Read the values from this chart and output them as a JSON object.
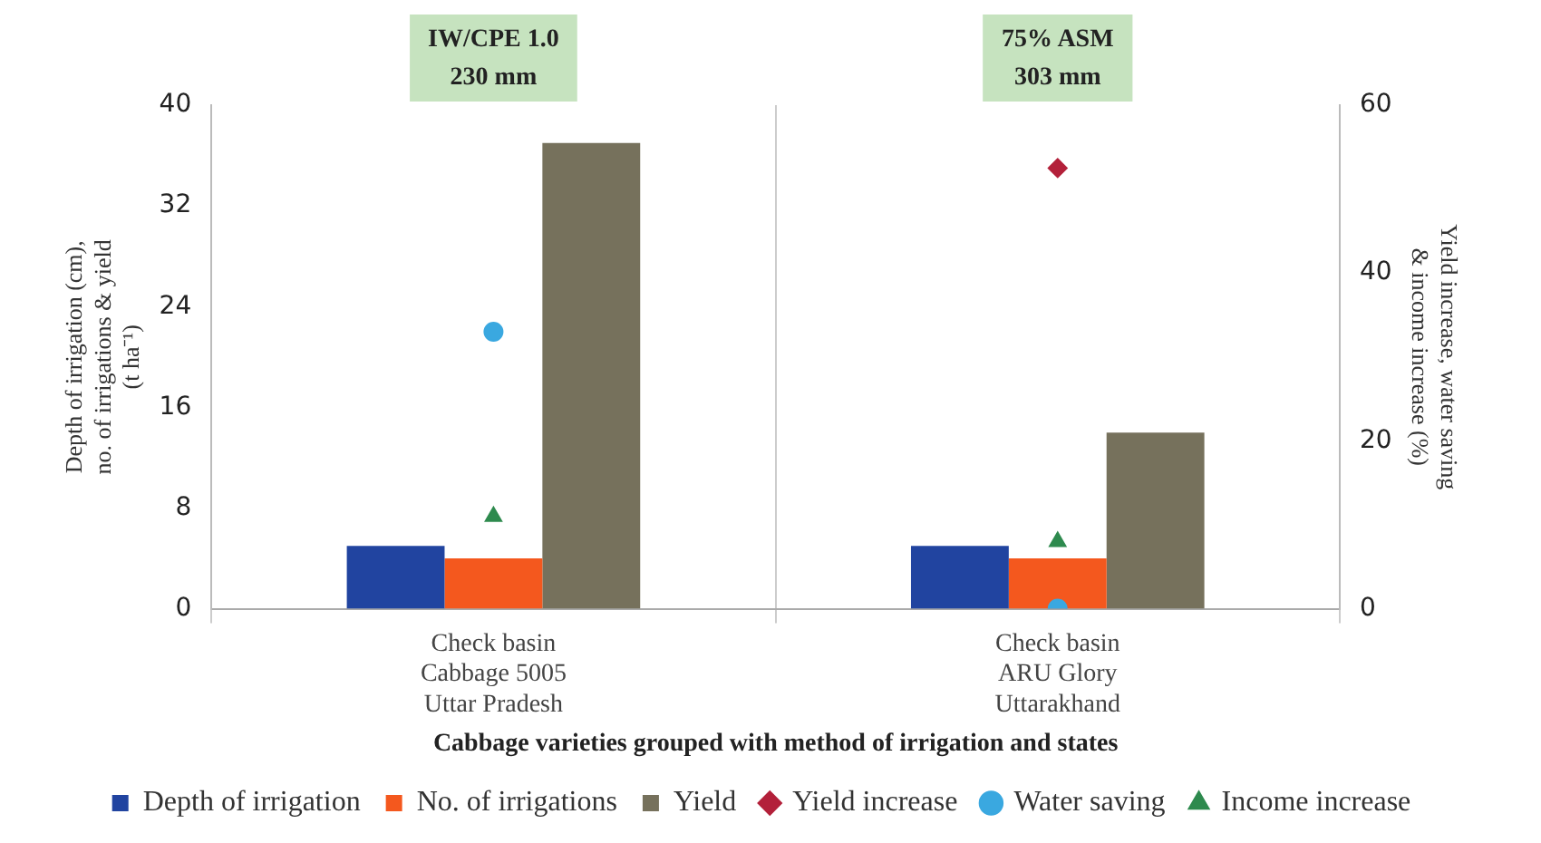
{
  "chart_data": {
    "type": "bar",
    "xlabel": "Cabbage varieties grouped with method of irrigation and states",
    "ylabel": "Depth of irrigation (cm), no. of irrigations & yield (t ha⁻¹)",
    "y2label": "Yield increase, water saving & income increase (%)",
    "categories": [
      "Check basin\nCabbage 5005\nUttar Pradesh",
      "Check basin\nARU Glory\nUttarakhand"
    ],
    "series": [
      {
        "name": "Depth of irrigation",
        "color": "#2144a0",
        "values": [
          5,
          5
        ]
      },
      {
        "name": "No. of irrigations",
        "color": "#f4581e",
        "values": [
          4,
          4
        ]
      },
      {
        "name": "Yield",
        "color": "#76715c",
        "values": [
          37,
          14
        ]
      },
      {
        "name": "Yield increase",
        "type": "scatter",
        "marker": "diamond",
        "axis": "y2",
        "color": "#b3203a",
        "values": [
          null,
          52.5
        ]
      },
      {
        "name": "Water saving",
        "type": "scatter",
        "marker": "circle",
        "axis": "y2",
        "color": "#3aa8e0",
        "values": [
          33,
          0
        ]
      },
      {
        "name": "Income increase",
        "type": "scatter",
        "marker": "triangle",
        "axis": "y2",
        "color": "#2e8a4e",
        "values": [
          11,
          8
        ]
      }
    ],
    "ylim": [
      0,
      40
    ],
    "yticks": [
      0,
      8,
      16,
      24,
      32,
      40
    ],
    "y2lim": [
      0,
      60
    ],
    "y2ticks": [
      0,
      20,
      40,
      60
    ],
    "annotations": [
      "IW/CPE 1.0\n230 mm",
      "75% ASM\n303 mm"
    ],
    "grid": "x",
    "legend": "bottom"
  }
}
